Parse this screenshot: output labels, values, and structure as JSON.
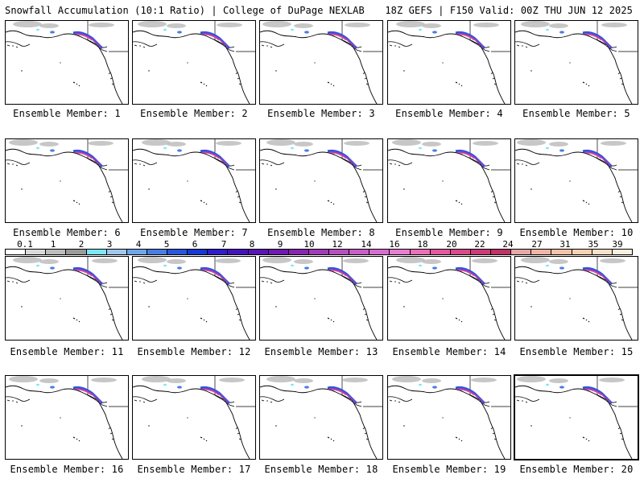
{
  "header": {
    "left_title": "Snowfall Accumulation (10:1 Ratio) | College of DuPage NEXLAB",
    "right_title": "18Z GEFS | F150 Valid: 00Z THU JUN 12 2025"
  },
  "colorbar": {
    "labels": [
      "0.1",
      "1",
      "2",
      "3",
      "4",
      "5",
      "6",
      "7",
      "8",
      "9",
      "10",
      "12",
      "14",
      "16",
      "18",
      "20",
      "22",
      "24",
      "27",
      "31",
      "35",
      "39"
    ],
    "colors": [
      "#ffffff",
      "#d9d9d9",
      "#bdbdbd",
      "#9b9b9b",
      "#7ee7f7",
      "#a0c8ef",
      "#6fa6ea",
      "#4a7de4",
      "#2a55dd",
      "#1838d6",
      "#2f1ccc",
      "#4511c0",
      "#5a14b5",
      "#7019b2",
      "#8a24b4",
      "#a23aba",
      "#b84fc0",
      "#c95ec8",
      "#d96ccf",
      "#e87ed2",
      "#ec6fb8",
      "#e4589f",
      "#d94a8c",
      "#cc3c79",
      "#c03268",
      "#e6a7a7",
      "#f0b5a5",
      "#f5c3a9",
      "#f8d1b3",
      "#fbe0c8",
      "#fdeedf"
    ]
  },
  "panels": [
    {
      "caption": "Ensemble Member: 1"
    },
    {
      "caption": "Ensemble Member: 2"
    },
    {
      "caption": "Ensemble Member: 3"
    },
    {
      "caption": "Ensemble Member: 4"
    },
    {
      "caption": "Ensemble Member: 5"
    },
    {
      "caption": "Ensemble Member: 6"
    },
    {
      "caption": "Ensemble Member: 7"
    },
    {
      "caption": "Ensemble Member: 8"
    },
    {
      "caption": "Ensemble Member: 9"
    },
    {
      "caption": "Ensemble Member: 10"
    },
    {
      "caption": "Ensemble Member: 11"
    },
    {
      "caption": "Ensemble Member: 12"
    },
    {
      "caption": "Ensemble Member: 13"
    },
    {
      "caption": "Ensemble Member: 14"
    },
    {
      "caption": "Ensemble Member: 15"
    },
    {
      "caption": "Ensemble Member: 16"
    },
    {
      "caption": "Ensemble Member: 17"
    },
    {
      "caption": "Ensemble Member: 18"
    },
    {
      "caption": "Ensemble Member: 19"
    },
    {
      "caption": "Ensemble Member: 20"
    }
  ],
  "selected_member": "20"
}
